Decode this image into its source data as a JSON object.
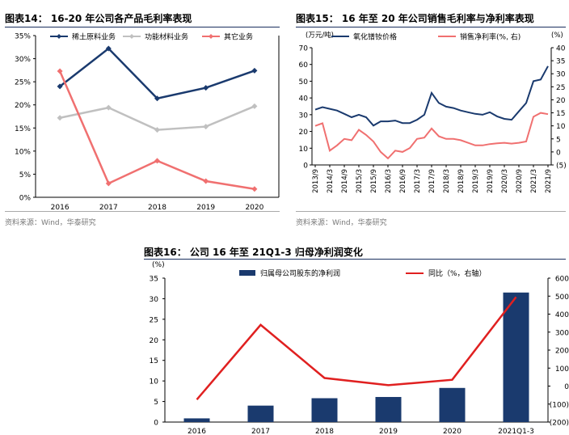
{
  "chart_data": [
    {
      "type": "line",
      "title": "图表14：  16-20 年公司各产品毛利率表现",
      "source": "资料来源：Wind，华泰研究",
      "categories": [
        "2016",
        "2017",
        "2018",
        "2019",
        "2020"
      ],
      "y_ticks": [
        "0%",
        "5%",
        "10%",
        "15%",
        "20%",
        "25%",
        "30%",
        "35%"
      ],
      "ylim": [
        0,
        35
      ],
      "legend_position": "top",
      "series": [
        {
          "name": "稀土原料业务",
          "color": "#1a3a6e",
          "marker": "diamond",
          "values": [
            24.0,
            32.2,
            21.4,
            23.7,
            27.4
          ]
        },
        {
          "name": "功能材料业务",
          "color": "#c0c0c0",
          "marker": "diamond",
          "values": [
            17.2,
            19.4,
            14.6,
            15.3,
            19.7
          ]
        },
        {
          "name": "其它业务",
          "color": "#f07070",
          "marker": "diamond",
          "values": [
            27.3,
            3.0,
            7.9,
            3.5,
            1.8
          ]
        }
      ]
    },
    {
      "type": "line",
      "title": "图表15：  16 年至 20 年公司销售毛利率与净利率表现",
      "source": "资料来源：Wind，华泰研究",
      "left_unit": "(万元/吨)",
      "right_unit": "(%)",
      "y_left_ticks": [
        "0",
        "10",
        "20",
        "30",
        "40",
        "50",
        "60",
        "70"
      ],
      "y_right_ticks": [
        "(5)",
        "0",
        "5",
        "10",
        "15",
        "20",
        "25",
        "30",
        "35",
        "40"
      ],
      "ylim_left": [
        0,
        70
      ],
      "ylim_right": [
        -5,
        40
      ],
      "x_ticks": [
        "2013/9",
        "2014/3",
        "2014/9",
        "2015/3",
        "2015/9",
        "2016/3",
        "2016/9",
        "2017/3",
        "2017/9",
        "2018/3",
        "2018/9",
        "2019/3",
        "2019/9",
        "2020/3",
        "2020/9",
        "2021/3",
        "2021/9"
      ],
      "legend_position": "top",
      "series": [
        {
          "name": "氧化镨钕价格",
          "axis": "left",
          "color": "#1a3a6e",
          "values": [
            33,
            34.5,
            33.5,
            32.5,
            30.5,
            28.5,
            30,
            28.5,
            23.5,
            26,
            26,
            26.5,
            25,
            25,
            27,
            30,
            43,
            37,
            34.8,
            34,
            32.5,
            31.5,
            30.5,
            30,
            31.5,
            29,
            27.5,
            27,
            32,
            37,
            50,
            51,
            59
          ]
        },
        {
          "name": "销售净利率(%, 右)",
          "axis": "right",
          "color": "#f07070",
          "values": [
            10,
            11,
            0.5,
            2.5,
            5,
            4.5,
            8.5,
            6.5,
            4,
            0,
            -2.5,
            0.5,
            0,
            1.5,
            5,
            5.5,
            9,
            6,
            5,
            5,
            4.5,
            3.5,
            2.5,
            2.5,
            3,
            3.3,
            3.5,
            3.2,
            3.5,
            4,
            13.5,
            15,
            14.5
          ]
        }
      ]
    },
    {
      "type": "bar",
      "title": "图表16：  公司 16 年至 21Q1-3 归母净利润变化",
      "left_unit": "(%)",
      "categories": [
        "2016",
        "2017",
        "2018",
        "2019",
        "2020",
        "2021Q1-3"
      ],
      "y_left_ticks": [
        "0",
        "5",
        "10",
        "15",
        "20",
        "25",
        "30",
        "35"
      ],
      "y_right_ticks": [
        "(200)",
        "(100)",
        "0",
        "100",
        "200",
        "300",
        "400",
        "500",
        "600"
      ],
      "ylim_left": [
        0,
        35
      ],
      "ylim_right": [
        -200,
        600
      ],
      "legend_position": "top",
      "series": [
        {
          "name": "归属母公司股东的净利润",
          "type": "bar",
          "axis": "left",
          "color": "#1a3a6e",
          "values": [
            0.9,
            4.0,
            5.8,
            6.1,
            8.3,
            31.5
          ]
        },
        {
          "name": "同比（%，右轴）",
          "type": "line",
          "axis": "right",
          "color": "#e02020",
          "values": [
            -75,
            340,
            45,
            5,
            35,
            495
          ]
        }
      ]
    }
  ]
}
